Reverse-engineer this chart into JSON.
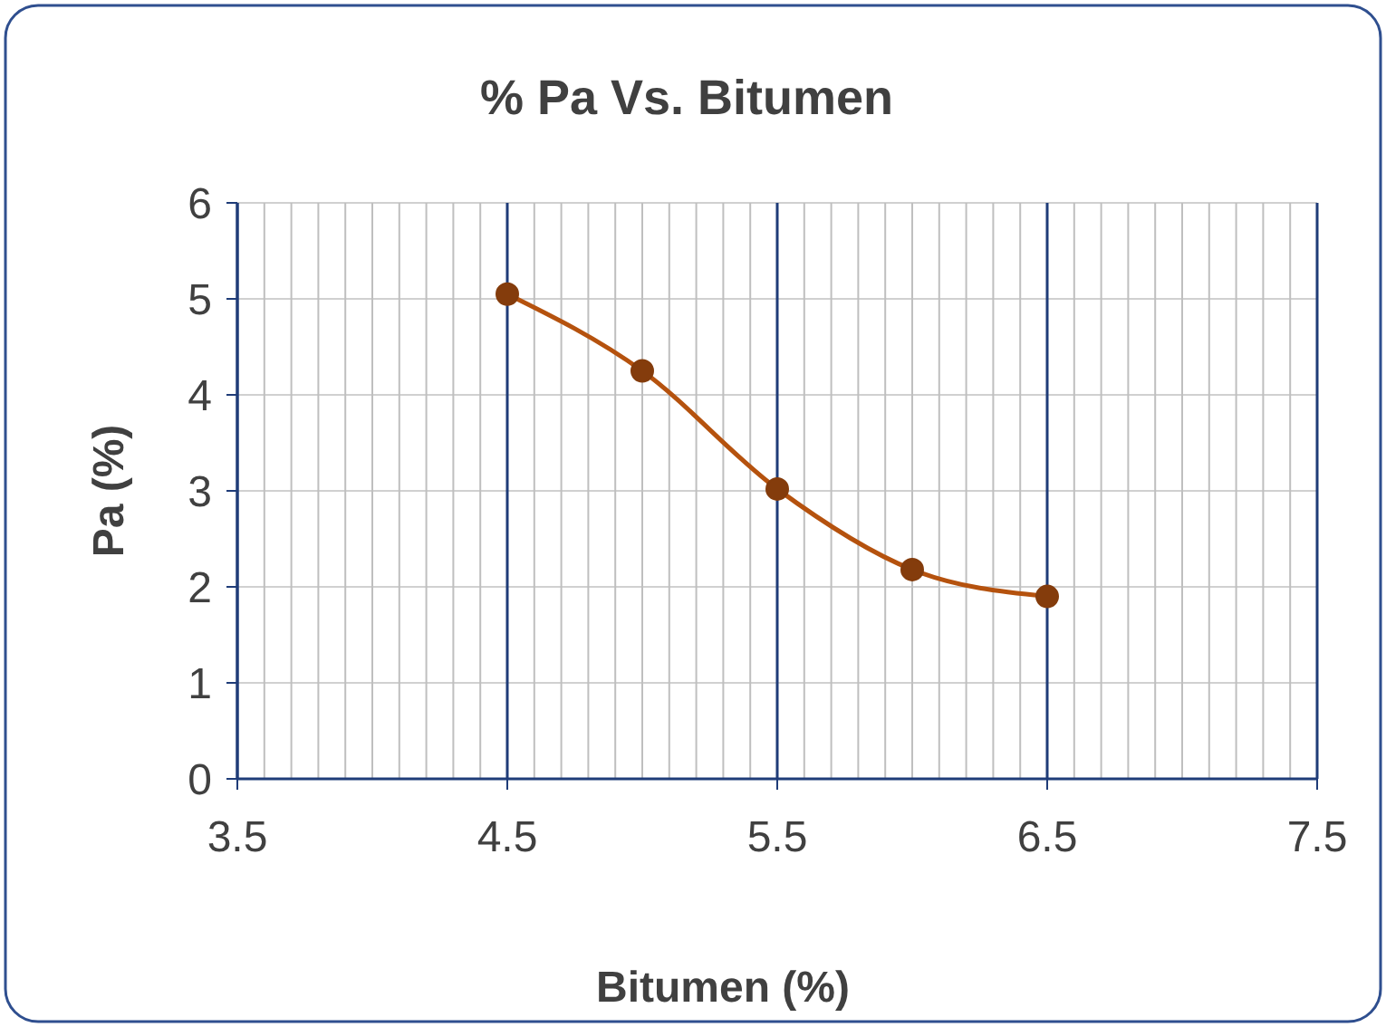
{
  "chart_data": {
    "type": "line",
    "title": "% Pa Vs. Bitumen",
    "xlabel": "Bitumen (%)",
    "ylabel": "Pa (%)",
    "x": [
      4.5,
      5,
      5.5,
      6,
      6.5
    ],
    "series": [
      {
        "color": "#b5520e",
        "values": [
          5.05,
          4.25,
          3.02,
          2.18,
          1.9
        ]
      }
    ],
    "xlim": [
      3.5,
      7.5
    ],
    "xticks": [
      3.5,
      4.5,
      5.5,
      6.5,
      7.5
    ],
    "ylim": [
      0,
      6
    ],
    "yticks": [
      0,
      1,
      2,
      3,
      4,
      5,
      6
    ],
    "grid": true,
    "marker": "circle",
    "line_style": "solid"
  }
}
